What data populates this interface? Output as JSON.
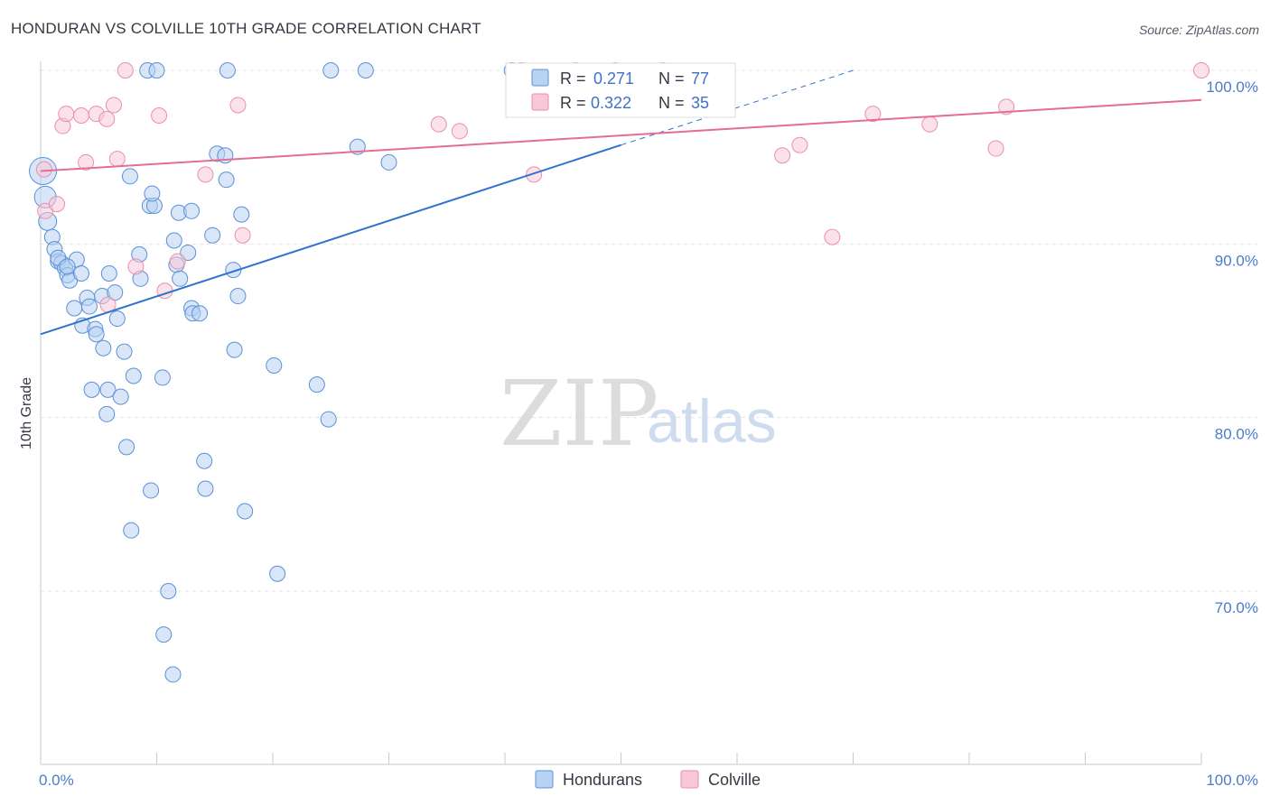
{
  "title": "HONDURAN VS COLVILLE 10TH GRADE CORRELATION CHART",
  "source": "Source: ZipAtlas.com",
  "watermark": {
    "zip": "ZIP",
    "atlas": "atlas"
  },
  "colors": {
    "blue_fill": "#b8d2f2",
    "blue_stroke": "#5b90d6",
    "blue_line": "#2f73d0",
    "pink_fill": "#f8c8d8",
    "pink_stroke": "#e98fae",
    "pink_line": "#e46d95",
    "axis_text": "#4a7cc9",
    "grid": "#e4e4e4"
  },
  "legend": {
    "rows": [
      {
        "r_label": "R = ",
        "r_value": "0.271",
        "n_label": "N = ",
        "n_value": "77",
        "series": "blue"
      },
      {
        "r_label": "R = ",
        "r_value": "0.322",
        "n_label": "N = ",
        "n_value": "35",
        "series": "pink"
      }
    ]
  },
  "bottom_legend": [
    {
      "label": "Hondurans",
      "series": "blue"
    },
    {
      "label": "Colville",
      "series": "pink"
    }
  ],
  "chart_data": {
    "type": "scatter",
    "title": "HONDURAN VS COLVILLE 10TH GRADE CORRELATION CHART",
    "xlabel": "",
    "ylabel": "10th Grade",
    "xlim": [
      0,
      100
    ],
    "ylim": [
      60.5,
      101.5
    ],
    "x_tick_labels": [
      {
        "value": 0,
        "label": "0.0%"
      },
      {
        "value": 100,
        "label": "100.0%"
      }
    ],
    "y_ticks": [
      {
        "value": 70,
        "label": "70.0%"
      },
      {
        "value": 80,
        "label": "80.0%"
      },
      {
        "value": 90,
        "label": "90.0%"
      },
      {
        "value": 100,
        "label": "100.0%"
      }
    ],
    "series": [
      {
        "name": "Hondurans",
        "color": "blue",
        "R": 0.271,
        "N": 77,
        "trend": {
          "x0": 0,
          "y0": 84.8,
          "x1": 50,
          "y1": 95.7,
          "dash_x1": 70,
          "dash_y1": 100.0
        },
        "points": [
          {
            "x": 0.2,
            "y": 94.2
          },
          {
            "x": 0.4,
            "y": 92.7
          },
          {
            "x": 0.6,
            "y": 91.3
          },
          {
            "x": 1.0,
            "y": 90.4
          },
          {
            "x": 1.2,
            "y": 89.7
          },
          {
            "x": 1.5,
            "y": 89.0
          },
          {
            "x": 1.8,
            "y": 88.9
          },
          {
            "x": 2.1,
            "y": 88.6
          },
          {
            "x": 2.3,
            "y": 88.2
          },
          {
            "x": 2.5,
            "y": 87.9
          },
          {
            "x": 3.1,
            "y": 89.1
          },
          {
            "x": 3.5,
            "y": 88.3
          },
          {
            "x": 4.0,
            "y": 86.9
          },
          {
            "x": 2.9,
            "y": 86.3
          },
          {
            "x": 4.2,
            "y": 86.4
          },
          {
            "x": 3.6,
            "y": 85.3
          },
          {
            "x": 4.7,
            "y": 85.1
          },
          {
            "x": 4.8,
            "y": 84.8
          },
          {
            "x": 5.3,
            "y": 87.0
          },
          {
            "x": 5.9,
            "y": 88.3
          },
          {
            "x": 6.4,
            "y": 87.2
          },
          {
            "x": 6.6,
            "y": 85.7
          },
          {
            "x": 5.4,
            "y": 84.0
          },
          {
            "x": 7.2,
            "y": 83.8
          },
          {
            "x": 4.4,
            "y": 81.6
          },
          {
            "x": 5.8,
            "y": 81.6
          },
          {
            "x": 6.9,
            "y": 81.2
          },
          {
            "x": 5.7,
            "y": 80.2
          },
          {
            "x": 8.0,
            "y": 82.4
          },
          {
            "x": 7.4,
            "y": 78.3
          },
          {
            "x": 7.7,
            "y": 93.9
          },
          {
            "x": 8.6,
            "y": 88.0
          },
          {
            "x": 8.5,
            "y": 89.4
          },
          {
            "x": 9.2,
            "y": 100.0
          },
          {
            "x": 10.0,
            "y": 100.0
          },
          {
            "x": 9.4,
            "y": 92.2
          },
          {
            "x": 9.8,
            "y": 92.2
          },
          {
            "x": 9.6,
            "y": 92.9
          },
          {
            "x": 10.5,
            "y": 82.3
          },
          {
            "x": 11.5,
            "y": 90.2
          },
          {
            "x": 11.7,
            "y": 88.8
          },
          {
            "x": 12.0,
            "y": 88.0
          },
          {
            "x": 12.7,
            "y": 89.5
          },
          {
            "x": 11.9,
            "y": 91.8
          },
          {
            "x": 13.0,
            "y": 91.9
          },
          {
            "x": 13.0,
            "y": 86.3
          },
          {
            "x": 13.1,
            "y": 86.0
          },
          {
            "x": 13.7,
            "y": 86.0
          },
          {
            "x": 14.1,
            "y": 77.5
          },
          {
            "x": 14.2,
            "y": 75.9
          },
          {
            "x": 14.8,
            "y": 90.5
          },
          {
            "x": 15.2,
            "y": 95.2
          },
          {
            "x": 15.9,
            "y": 95.1
          },
          {
            "x": 16.0,
            "y": 93.7
          },
          {
            "x": 16.1,
            "y": 100.0
          },
          {
            "x": 16.6,
            "y": 88.5
          },
          {
            "x": 16.7,
            "y": 83.9
          },
          {
            "x": 17.0,
            "y": 87.0
          },
          {
            "x": 17.3,
            "y": 91.7
          },
          {
            "x": 17.6,
            "y": 74.6
          },
          {
            "x": 9.5,
            "y": 75.8
          },
          {
            "x": 7.8,
            "y": 73.5
          },
          {
            "x": 11.0,
            "y": 70.0
          },
          {
            "x": 10.6,
            "y": 67.5
          },
          {
            "x": 11.4,
            "y": 65.2
          },
          {
            "x": 20.4,
            "y": 71.0
          },
          {
            "x": 20.1,
            "y": 83.0
          },
          {
            "x": 23.8,
            "y": 81.9
          },
          {
            "x": 24.8,
            "y": 79.9
          },
          {
            "x": 25.0,
            "y": 100.0
          },
          {
            "x": 27.3,
            "y": 95.6
          },
          {
            "x": 28.0,
            "y": 100.0
          },
          {
            "x": 30.0,
            "y": 94.7
          },
          {
            "x": 40.6,
            "y": 100.0
          },
          {
            "x": 41.4,
            "y": 100.0
          },
          {
            "x": 1.5,
            "y": 89.2
          },
          {
            "x": 2.3,
            "y": 88.7
          }
        ]
      },
      {
        "name": "Colville",
        "color": "pink",
        "R": 0.322,
        "N": 35,
        "trend": {
          "x0": 0,
          "y0": 94.2,
          "x1": 100,
          "y1": 98.3
        },
        "points": [
          {
            "x": 0.3,
            "y": 94.3
          },
          {
            "x": 0.4,
            "y": 91.9
          },
          {
            "x": 1.4,
            "y": 92.3
          },
          {
            "x": 1.9,
            "y": 96.8
          },
          {
            "x": 2.2,
            "y": 97.5
          },
          {
            "x": 3.5,
            "y": 97.4
          },
          {
            "x": 3.9,
            "y": 94.7
          },
          {
            "x": 4.8,
            "y": 97.5
          },
          {
            "x": 5.7,
            "y": 97.2
          },
          {
            "x": 6.3,
            "y": 98.0
          },
          {
            "x": 6.6,
            "y": 94.9
          },
          {
            "x": 7.3,
            "y": 100.0
          },
          {
            "x": 5.8,
            "y": 86.5
          },
          {
            "x": 8.2,
            "y": 88.7
          },
          {
            "x": 10.2,
            "y": 97.4
          },
          {
            "x": 10.7,
            "y": 87.3
          },
          {
            "x": 11.8,
            "y": 89.0
          },
          {
            "x": 14.2,
            "y": 94.0
          },
          {
            "x": 17.0,
            "y": 98.0
          },
          {
            "x": 17.4,
            "y": 90.5
          },
          {
            "x": 34.3,
            "y": 96.9
          },
          {
            "x": 36.1,
            "y": 96.5
          },
          {
            "x": 41.4,
            "y": 100.0
          },
          {
            "x": 42.5,
            "y": 94.0
          },
          {
            "x": 46.1,
            "y": 100.0
          },
          {
            "x": 49.5,
            "y": 100.0
          },
          {
            "x": 53.6,
            "y": 100.0
          },
          {
            "x": 63.9,
            "y": 95.1
          },
          {
            "x": 65.4,
            "y": 95.7
          },
          {
            "x": 68.2,
            "y": 90.4
          },
          {
            "x": 71.7,
            "y": 97.5
          },
          {
            "x": 76.6,
            "y": 96.9
          },
          {
            "x": 82.3,
            "y": 95.5
          },
          {
            "x": 83.2,
            "y": 97.9
          },
          {
            "x": 100.0,
            "y": 100.0
          }
        ]
      }
    ]
  }
}
